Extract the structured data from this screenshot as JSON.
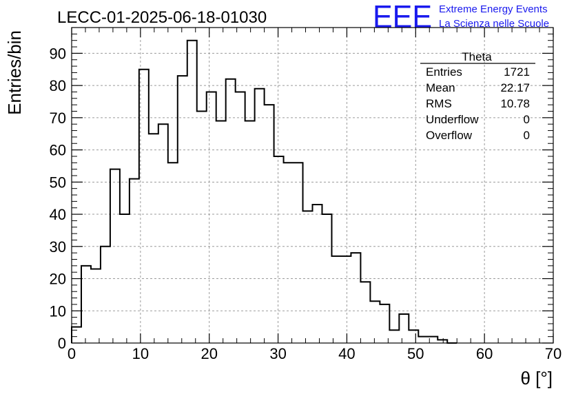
{
  "header": {
    "run_title": "LECC-01-2025-06-18-01030",
    "logo_text": "EEE",
    "logo_line1": "Extreme Energy Events",
    "logo_line2": "La Scienza nelle Scuole",
    "logo_color": "#1a1aee"
  },
  "stats_box": {
    "title": "Theta",
    "rows": [
      {
        "label": "Entries",
        "value": "1721"
      },
      {
        "label": "Mean",
        "value": "22.17"
      },
      {
        "label": "RMS",
        "value": "10.78"
      },
      {
        "label": "Underflow",
        "value": "0"
      },
      {
        "label": "Overflow",
        "value": "0"
      }
    ]
  },
  "chart_data": {
    "type": "histogram",
    "xlabel": "θ [°]",
    "ylabel": "Entries/bin",
    "xlim": [
      0,
      70
    ],
    "ylim": [
      0,
      98
    ],
    "x_ticks": [
      0,
      10,
      20,
      30,
      40,
      50,
      60,
      70
    ],
    "y_ticks": [
      0,
      10,
      20,
      30,
      40,
      50,
      60,
      70,
      80,
      90
    ],
    "grid": true,
    "bin_width": 1.4,
    "bin_edges_start": 0,
    "values": [
      5,
      24,
      23,
      30,
      54,
      40,
      51,
      85,
      65,
      68,
      56,
      83,
      94,
      72,
      78,
      69,
      82,
      78,
      69,
      79,
      74,
      58,
      56,
      56,
      41,
      43,
      40,
      27,
      27,
      28,
      19,
      13,
      12,
      4,
      9,
      4,
      2,
      2,
      1,
      0
    ],
    "line_color": "#000000"
  }
}
